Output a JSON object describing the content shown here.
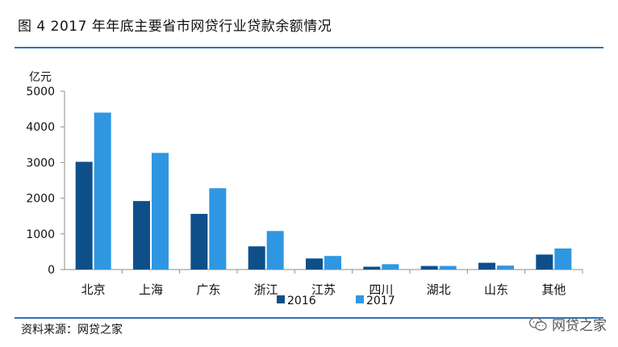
{
  "figure": {
    "title": "图 4  2017 年年底主要省市网贷行业贷款余额情况",
    "source": "资料来源：网贷之家",
    "watermark": "网贷之家"
  },
  "colors": {
    "rule": "#2e74b5",
    "series_2016": "#0e4f8a",
    "series_2017": "#2f97e2",
    "axis": "#8c8c8c"
  },
  "chart_data": {
    "type": "bar",
    "title": "",
    "ylabel": "亿元",
    "xlabel": "",
    "ylim": [
      0,
      5000
    ],
    "yticks": [
      0,
      1000,
      2000,
      3000,
      4000,
      5000
    ],
    "grid": false,
    "legend_position": "bottom-center",
    "categories": [
      "北京",
      "上海",
      "广东",
      "浙江",
      "江苏",
      "四川",
      "湖北",
      "山东",
      "其他"
    ],
    "series": [
      {
        "name": "2016",
        "values": [
          3020,
          1920,
          1560,
          650,
          310,
          80,
          100,
          190,
          420
        ]
      },
      {
        "name": "2017",
        "values": [
          4400,
          3270,
          2280,
          1080,
          380,
          150,
          100,
          110,
          590
        ]
      }
    ]
  }
}
